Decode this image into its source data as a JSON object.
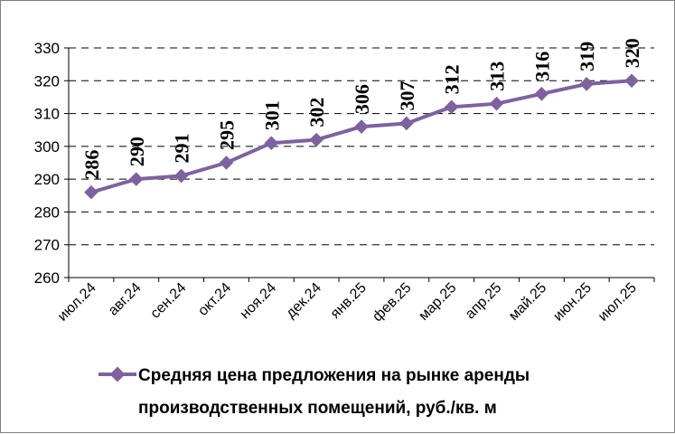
{
  "chart_data": {
    "type": "line",
    "categories": [
      "июл.24",
      "авг.24",
      "сен.24",
      "окт.24",
      "ноя.24",
      "дек.24",
      "янв.25",
      "фев.25",
      "мар.25",
      "апр.25",
      "май.25",
      "июн.25",
      "июл.25"
    ],
    "series": [
      {
        "name": "Средняя цена предложения на рынке аренды производственных помещений, руб./кв. м",
        "name_lines": [
          "Средняя цена предложения на рынке аренды",
          "производственных помещений,  руб./кв. м"
        ],
        "values": [
          286,
          290,
          291,
          295,
          301,
          302,
          306,
          307,
          312,
          313,
          316,
          319,
          320
        ],
        "labels": [
          "286",
          "290",
          "291",
          "295",
          "301",
          "302",
          "306",
          "307",
          "312",
          "313",
          "316",
          "319",
          "320"
        ],
        "color": "#7f61a0"
      }
    ],
    "yticks": [
      "330",
      "320",
      "310",
      "300",
      "290",
      "280",
      "270",
      "260"
    ],
    "ylim": [
      260,
      330
    ],
    "grid": "horizontal-dashed",
    "legend": "bottom",
    "title": "",
    "xlabel": "",
    "ylabel": ""
  }
}
